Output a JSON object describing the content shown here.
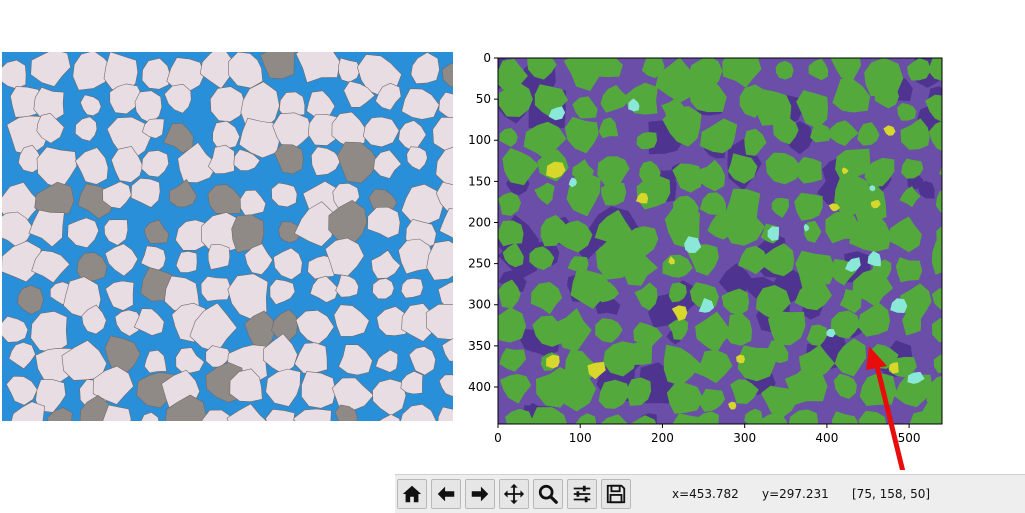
{
  "figure": {
    "left_image": {
      "description": "thin-section micrograph of sand grains"
    },
    "right_image": {
      "x_ticks": [
        "0",
        "100",
        "200",
        "300",
        "400",
        "500"
      ],
      "y_ticks": [
        "0",
        "50",
        "100",
        "150",
        "200",
        "250",
        "300",
        "350",
        "400"
      ],
      "x_range": [
        0,
        540
      ],
      "y_range": [
        0,
        445
      ]
    },
    "colors": {
      "grain": "#54a93c",
      "pore": "#6a4ea8",
      "pore_dark": "#4f3391",
      "cement": "#d7d72c",
      "cyan_phase": "#8ae8d8",
      "photo_blue": "#2a8fd9",
      "photo_grain": "#e9dde4",
      "arrow": "#e80c0c"
    }
  },
  "toolbar": {
    "buttons": [
      {
        "name": "home",
        "icon": "home-icon"
      },
      {
        "name": "back",
        "icon": "arrow-left-icon"
      },
      {
        "name": "forward",
        "icon": "arrow-right-icon"
      },
      {
        "name": "pan",
        "icon": "move-icon"
      },
      {
        "name": "zoom",
        "icon": "magnifier-icon"
      },
      {
        "name": "configure",
        "icon": "sliders-icon"
      },
      {
        "name": "save",
        "icon": "floppy-icon"
      }
    ],
    "x_readout": "x=453.782",
    "y_readout": "y=297.231",
    "pixel_value": "[75, 158, 50]"
  }
}
